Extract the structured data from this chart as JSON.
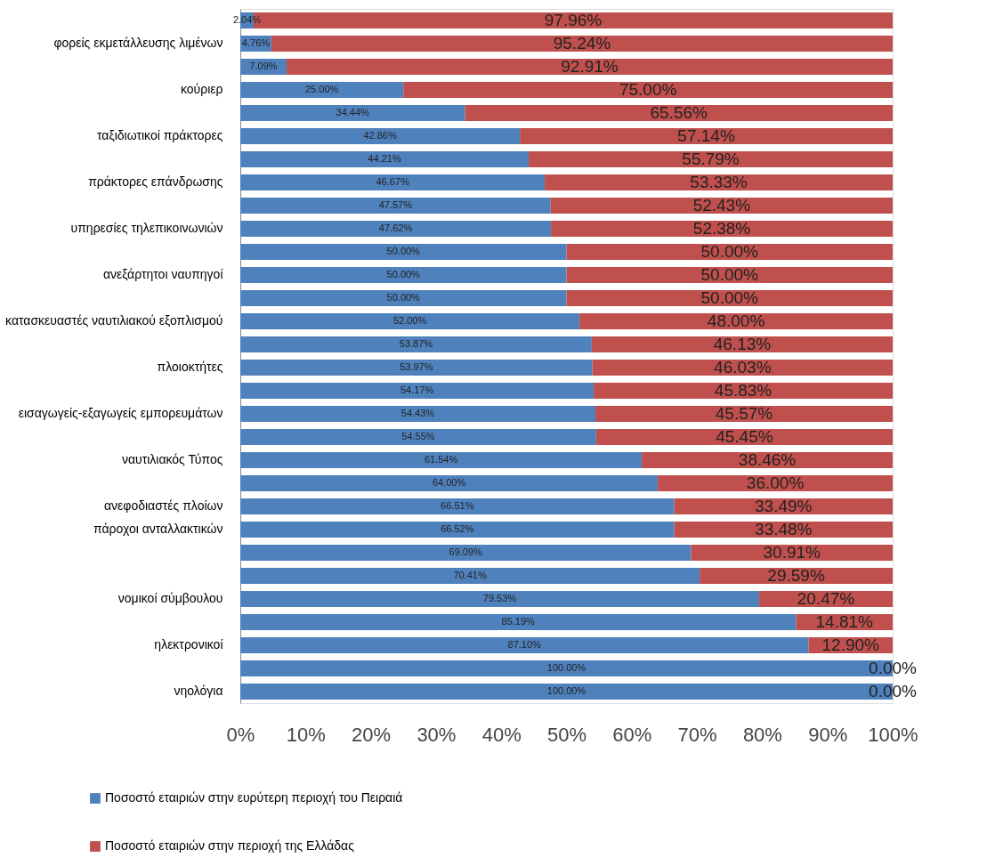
{
  "chart_data": {
    "type": "bar",
    "orientation": "horizontal",
    "stacked": true,
    "categories": [
      null,
      "φορείς εκμετάλλευσης λιμένων",
      null,
      "κούριερ",
      null,
      "ταξιδιωτικοί πράκτορες",
      null,
      "πράκτορες επάνδρωσης",
      null,
      "υπηρεσίες τηλεπικοινωνιών",
      null,
      "ανεξάρτητοι ναυπηγοί",
      null,
      "κατασκευαστές ναυτιλιακού εξοπλισμού",
      null,
      "πλοιοκτήτες",
      null,
      "εισαγωγείς-εξαγωγείς εμπορευμάτων",
      null,
      "ναυτιλιακός Τύπος",
      null,
      "ανεφοδιαστές πλοίων",
      "πάροχοι ανταλλακτικών",
      null,
      null,
      "νομικοί σύμβουλου",
      null,
      "ηλεκτρονικοί",
      null,
      "νηολόγια"
    ],
    "series": [
      {
        "name": "Ποσοστό εταιριών στην ευρύτερη περιοχή του Πειραιά",
        "color": "#4f81bd",
        "values": [
          2.04,
          4.76,
          7.09,
          25.0,
          34.44,
          42.86,
          44.21,
          46.67,
          47.57,
          47.62,
          50.0,
          50.0,
          50.0,
          52.0,
          53.87,
          53.97,
          54.17,
          54.43,
          54.55,
          61.54,
          64.0,
          66.51,
          66.52,
          69.09,
          70.41,
          79.53,
          85.19,
          87.1,
          100.0,
          100.0
        ],
        "value_labels": [
          "2.04%",
          "4.76%",
          "7.09%",
          "25.00%",
          "34.44%",
          "42.86%",
          "44.21%",
          "46.67%",
          "47.57%",
          "47.62%",
          "50.00%",
          "50.00%",
          "50.00%",
          "52.00%",
          "53.87%",
          "53.97%",
          "54.17%",
          "54.43%",
          "54.55%",
          "61.54%",
          "64.00%",
          "66.51%",
          "66.52%",
          "69.09%",
          "70.41%",
          "79.53%",
          "85.19%",
          "87.10%",
          "100.00%",
          "100.00%"
        ]
      },
      {
        "name": "Ποσοστό εταιριών στην περιοχή της Ελλάδας",
        "color": "#c0504d",
        "values": [
          97.96,
          95.24,
          92.91,
          75.0,
          65.56,
          57.14,
          55.79,
          53.33,
          52.43,
          52.38,
          50.0,
          50.0,
          50.0,
          48.0,
          46.13,
          46.03,
          45.83,
          45.57,
          45.45,
          38.46,
          36.0,
          33.49,
          33.48,
          30.91,
          29.59,
          20.47,
          14.81,
          12.9,
          0.0,
          0.0
        ],
        "value_labels": [
          "97.96%",
          "95.24%",
          "92.91%",
          "75.00%",
          "65.56%",
          "57.14%",
          "55.79%",
          "53.33%",
          "52.43%",
          "52.38%",
          "50.00%",
          "50.00%",
          "50.00%",
          "48.00%",
          "46.13%",
          "46.03%",
          "45.83%",
          "45.57%",
          "45.45%",
          "38.46%",
          "36.00%",
          "33.49%",
          "33.48%",
          "30.91%",
          "29.59%",
          "20.47%",
          "14.81%",
          "12.90%",
          "0.00%",
          "0.00%"
        ]
      }
    ],
    "xlim": [
      0,
      100
    ],
    "xticks": [
      {
        "value": 0,
        "label": "0%"
      },
      {
        "value": 10,
        "label": "10%"
      },
      {
        "value": 20,
        "label": "20%"
      },
      {
        "value": 30,
        "label": "30%"
      },
      {
        "value": 40,
        "label": "40%"
      },
      {
        "value": 50,
        "label": "50%"
      },
      {
        "value": 60,
        "label": "60%"
      },
      {
        "value": 70,
        "label": "70%"
      },
      {
        "value": 80,
        "label": "80%"
      },
      {
        "value": 90,
        "label": "90%"
      },
      {
        "value": 100,
        "label": "100%"
      }
    ],
    "grid": false,
    "legend": "bottom left"
  }
}
